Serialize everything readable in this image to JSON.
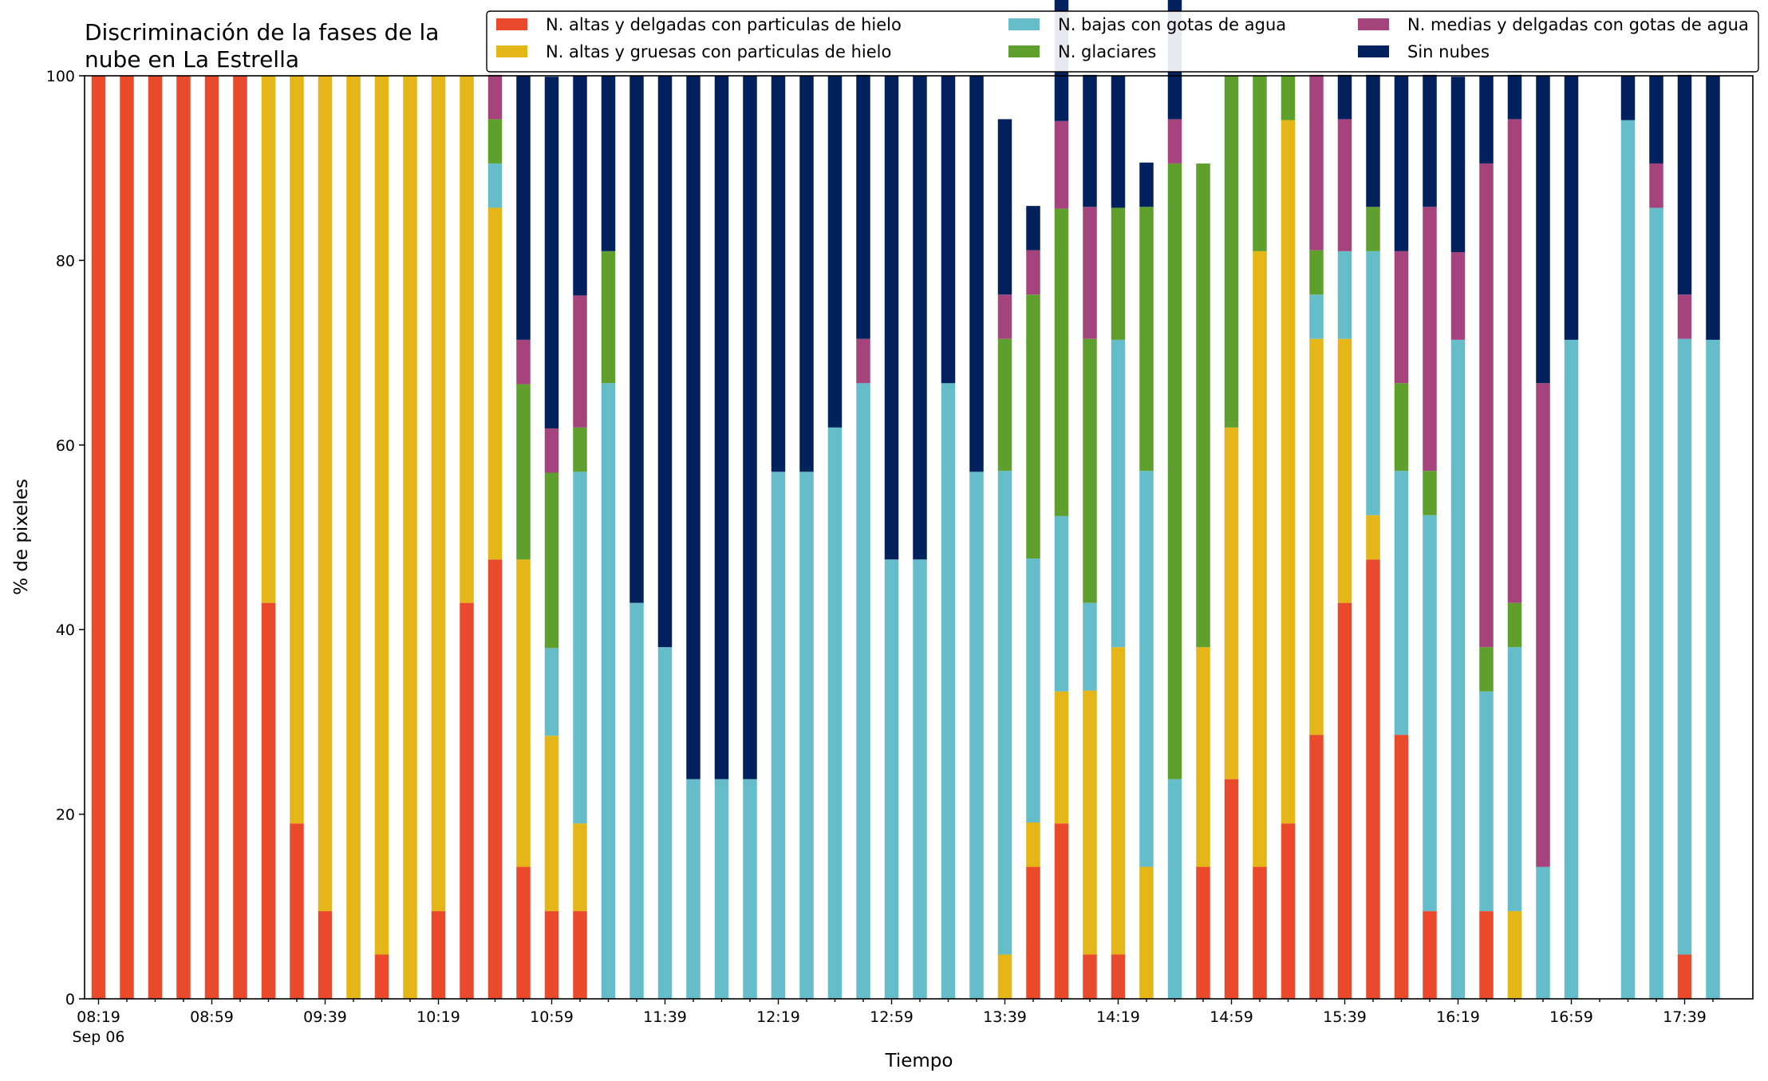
{
  "chart_data": {
    "type": "bar",
    "stacked": true,
    "title": "Discriminación de la fases de la\nnube en La Estrella",
    "xlabel": "Tiempo",
    "ylabel": "% de pixeles",
    "ylim": [
      0,
      100
    ],
    "yticks": [
      0,
      20,
      40,
      60,
      80,
      100
    ],
    "grid": false,
    "legend_position": "top-right",
    "date_label": "Sep 06",
    "x_start": "08:19",
    "x_step_minutes": 10,
    "xticks": [
      "08:19",
      "08:59",
      "09:39",
      "10:19",
      "10:59",
      "11:39",
      "12:19",
      "12:59",
      "13:39",
      "14:19",
      "14:59",
      "15:39",
      "16:19",
      "16:59",
      "17:39"
    ],
    "categories": [
      "08:19",
      "08:29",
      "08:39",
      "08:49",
      "08:59",
      "09:09",
      "09:19",
      "09:29",
      "09:39",
      "09:49",
      "09:59",
      "10:09",
      "10:19",
      "10:29",
      "10:39",
      "10:49",
      "10:59",
      "11:09",
      "11:19",
      "11:29",
      "11:39",
      "11:49",
      "11:59",
      "12:09",
      "12:19",
      "12:29",
      "12:39",
      "12:49",
      "12:59",
      "13:09",
      "13:19",
      "13:29",
      "13:39",
      "13:49",
      "13:59",
      "14:09",
      "14:19",
      "14:29",
      "14:39",
      "14:49",
      "14:59",
      "15:09",
      "15:19",
      "15:29",
      "15:39",
      "15:49",
      "15:59",
      "16:09",
      "16:19",
      "16:29",
      "16:39",
      "16:49",
      "16:59",
      "17:09",
      "17:19",
      "17:29",
      "17:39",
      "17:49"
    ],
    "series": [
      {
        "name": "N. altas y delgadas con particulas de hielo",
        "color": "#e94a2b",
        "values": [
          100,
          100,
          100,
          100,
          100,
          100,
          42.9,
          19,
          9.5,
          0,
          4.8,
          0,
          9.5,
          42.9,
          47.6,
          14.3,
          9.5,
          9.5,
          0,
          0,
          0,
          0,
          0,
          0,
          0,
          0,
          0,
          0,
          0,
          0,
          0,
          0,
          0,
          14.3,
          19,
          4.8,
          4.8,
          0,
          0,
          14.3,
          23.8,
          14.3,
          19,
          28.6,
          42.9,
          47.6,
          28.6,
          9.5,
          0,
          9.5,
          0,
          0,
          0,
          0,
          0,
          0,
          4.8,
          0
        ]
      },
      {
        "name": "N. altas y gruesas con particulas de hielo",
        "color": "#e4b617",
        "values": [
          0,
          0,
          0,
          0,
          0,
          0,
          57.1,
          81,
          90.5,
          100,
          95.2,
          100,
          90.5,
          57.1,
          38.1,
          33.3,
          19,
          9.5,
          0,
          0,
          0,
          0,
          0,
          0,
          0,
          0,
          0,
          0,
          0,
          0,
          0,
          0,
          4.8,
          4.8,
          14.3,
          28.6,
          33.3,
          14.3,
          0,
          23.8,
          38.1,
          66.7,
          76.2,
          42.9,
          28.6,
          4.8,
          0,
          0,
          0,
          0,
          9.5,
          0,
          0,
          0,
          0,
          0,
          0,
          0
        ]
      },
      {
        "name": "N. bajas con gotas de agua",
        "color": "#65bdc9",
        "values": [
          0,
          0,
          0,
          0,
          0,
          0,
          0,
          0,
          0,
          0,
          0,
          0,
          0,
          0,
          4.8,
          0,
          9.5,
          38.1,
          66.7,
          42.9,
          38.1,
          23.8,
          23.8,
          23.8,
          57.1,
          57.1,
          61.9,
          66.7,
          47.6,
          47.6,
          66.7,
          57.1,
          52.4,
          28.6,
          19,
          9.5,
          33.3,
          42.9,
          23.8,
          0,
          0,
          0,
          0,
          4.8,
          9.5,
          28.6,
          28.6,
          42.9,
          71.4,
          23.8,
          28.6,
          14.3,
          71.4,
          0,
          95.2,
          85.7,
          66.7,
          71.4
        ]
      },
      {
        "name": "N. glaciares",
        "color": "#5e9f2e",
        "values": [
          0,
          0,
          0,
          0,
          0,
          0,
          0,
          0,
          0,
          0,
          0,
          0,
          0,
          0,
          4.8,
          19,
          19,
          4.8,
          14.3,
          0,
          0,
          0,
          0,
          0,
          0,
          0,
          0,
          0,
          0,
          0,
          0,
          0,
          14.3,
          28.6,
          33.3,
          28.6,
          14.3,
          28.6,
          66.7,
          52.4,
          38.1,
          19,
          4.8,
          4.8,
          0,
          4.8,
          9.5,
          4.8,
          0,
          4.8,
          4.8,
          0,
          0,
          0,
          0,
          0,
          0,
          0
        ]
      },
      {
        "name": "N. medias y delgadas con gotas de agua",
        "color": "#a5447c",
        "values": [
          0,
          0,
          0,
          0,
          0,
          0,
          0,
          0,
          0,
          0,
          0,
          0,
          0,
          0,
          4.8,
          4.8,
          4.8,
          14.3,
          0,
          0,
          0,
          0,
          0,
          0,
          0,
          0,
          0,
          4.8,
          0,
          0,
          0,
          0,
          4.8,
          4.8,
          9.5,
          14.3,
          0,
          0,
          4.8,
          0,
          0,
          0,
          0,
          19,
          14.3,
          0,
          14.3,
          28.6,
          9.5,
          52.4,
          52.4,
          52.4,
          0,
          0,
          0,
          4.8,
          4.8,
          0
        ]
      },
      {
        "name": "Sin nubes",
        "color": "#03215c",
        "values": [
          0,
          0,
          0,
          0,
          0,
          0,
          0,
          0,
          0,
          0,
          0,
          0,
          0,
          0,
          0,
          28.6,
          38.1,
          23.8,
          19,
          57.1,
          61.9,
          76.2,
          76.2,
          76.2,
          42.9,
          42.9,
          38.1,
          28.6,
          52.4,
          52.4,
          33.3,
          42.9,
          19,
          4.8,
          14.3,
          14.3,
          14.3,
          4.8,
          14.3,
          0,
          0,
          0,
          0,
          0,
          4.8,
          14.3,
          19,
          14.3,
          19,
          9.5,
          4.8,
          33.3,
          28.6,
          0,
          4.8,
          9.5,
          23.8,
          28.6
        ]
      }
    ]
  }
}
